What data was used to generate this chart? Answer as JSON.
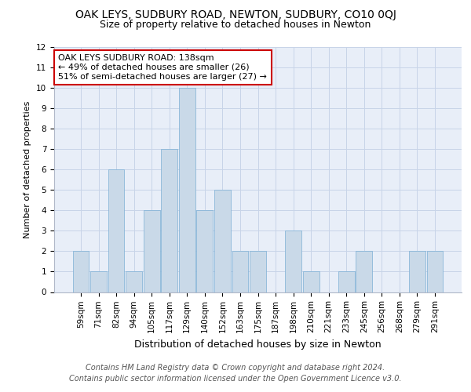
{
  "title": "OAK LEYS, SUDBURY ROAD, NEWTON, SUDBURY, CO10 0QJ",
  "subtitle": "Size of property relative to detached houses in Newton",
  "xlabel": "Distribution of detached houses by size in Newton",
  "ylabel": "Number of detached properties",
  "categories": [
    "59sqm",
    "71sqm",
    "82sqm",
    "94sqm",
    "105sqm",
    "117sqm",
    "129sqm",
    "140sqm",
    "152sqm",
    "163sqm",
    "175sqm",
    "187sqm",
    "198sqm",
    "210sqm",
    "221sqm",
    "233sqm",
    "245sqm",
    "256sqm",
    "268sqm",
    "279sqm",
    "291sqm"
  ],
  "values": [
    2,
    1,
    6,
    1,
    4,
    7,
    10,
    4,
    5,
    2,
    2,
    0,
    3,
    1,
    0,
    1,
    2,
    0,
    0,
    2,
    2
  ],
  "bar_color": "#c9d9e8",
  "bar_edge_color": "#7bafd4",
  "highlight_index": 7,
  "annotation_box_text": "OAK LEYS SUDBURY ROAD: 138sqm\n← 49% of detached houses are smaller (26)\n51% of semi-detached houses are larger (27) →",
  "annotation_box_color": "#ffffff",
  "annotation_box_edgecolor": "#cc0000",
  "ylim": [
    0,
    12
  ],
  "yticks": [
    0,
    1,
    2,
    3,
    4,
    5,
    6,
    7,
    8,
    9,
    10,
    11,
    12
  ],
  "grid_color": "#c8d4e8",
  "background_color": "#e8eef8",
  "footer_line1": "Contains HM Land Registry data © Crown copyright and database right 2024.",
  "footer_line2": "Contains public sector information licensed under the Open Government Licence v3.0.",
  "title_fontsize": 10,
  "subtitle_fontsize": 9,
  "annotation_fontsize": 8,
  "footer_fontsize": 7,
  "ylabel_fontsize": 8,
  "xlabel_fontsize": 9,
  "tick_fontsize": 7.5
}
